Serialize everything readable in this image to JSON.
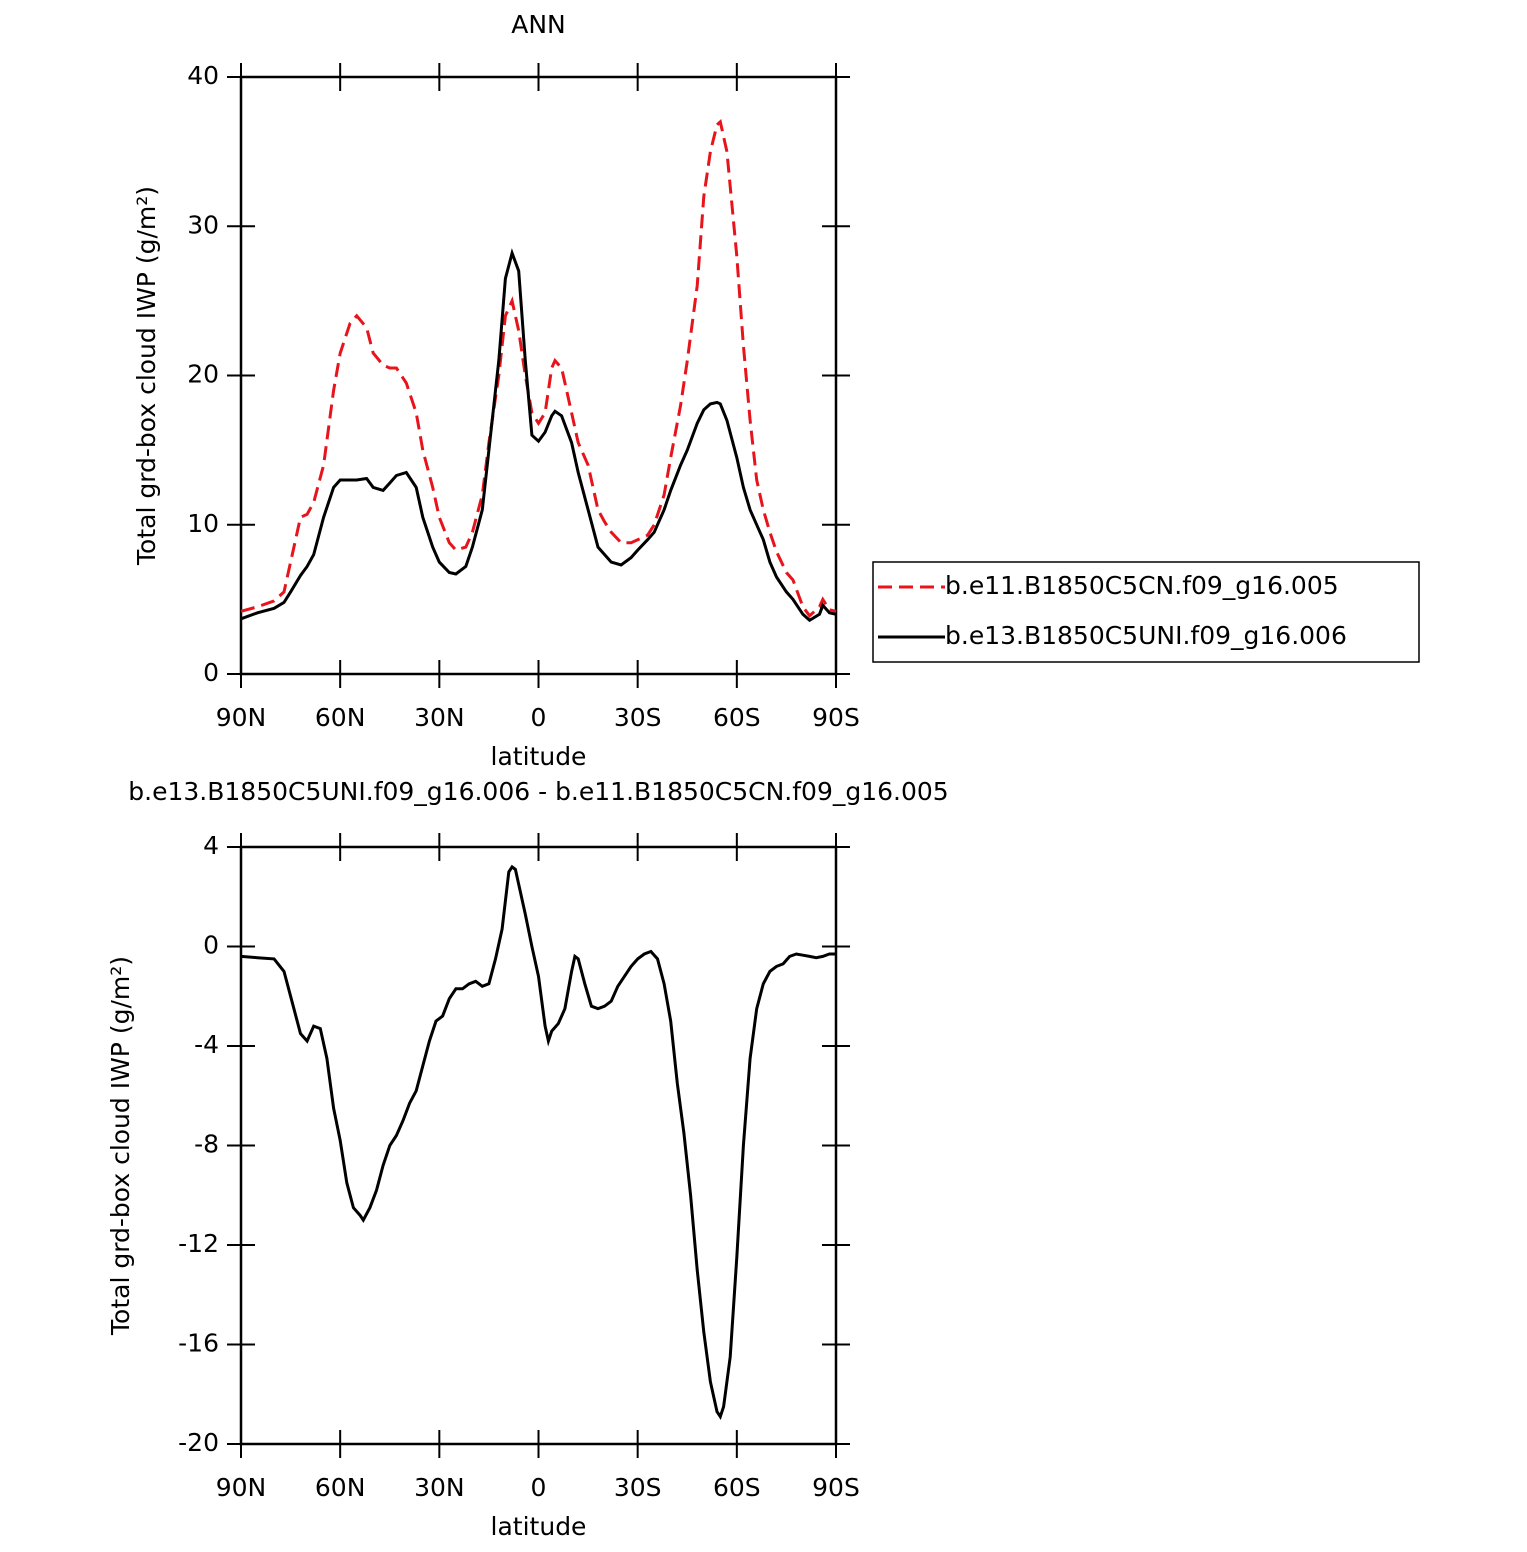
{
  "chart_data": [
    {
      "type": "line",
      "title": "ANN",
      "xlabel": "latitude",
      "ylabel": "Total grd-box cloud IWP (g/m²)",
      "xlim": [
        90,
        -90
      ],
      "xticks": [
        {
          "value": 90,
          "label": "90N"
        },
        {
          "value": 60,
          "label": "60N"
        },
        {
          "value": 30,
          "label": "30N"
        },
        0,
        {
          "value": -30,
          "label": "30S"
        },
        {
          "value": -60,
          "label": "60S"
        },
        {
          "value": -90,
          "label": "90S"
        }
      ],
      "ylim": [
        0,
        40
      ],
      "yticks": [
        0,
        10,
        20,
        30,
        40
      ],
      "legend": "outside-right",
      "x": [
        90,
        85,
        80,
        77,
        75,
        72,
        70,
        68,
        65,
        62,
        60,
        57,
        55,
        52,
        50,
        47,
        45,
        43,
        40,
        37,
        35,
        32,
        30,
        27,
        25,
        22,
        20,
        17,
        15,
        12,
        10,
        8,
        6,
        4,
        2,
        0,
        -2,
        -4,
        -5,
        -7,
        -10,
        -12,
        -15,
        -18,
        -20,
        -22,
        -25,
        -28,
        -30,
        -33,
        -35,
        -38,
        -40,
        -43,
        -45,
        -48,
        -50,
        -52,
        -54,
        -55,
        -57,
        -60,
        -62,
        -64,
        -66,
        -68,
        -70,
        -72,
        -75,
        -77,
        -80,
        -82,
        -85,
        -86,
        -88,
        -90
      ],
      "series": [
        {
          "name": "b.e11.B1850C5CN.f09_g16.005",
          "color": "#e8141c",
          "dash": true,
          "values": [
            4.2,
            4.5,
            4.9,
            5.5,
            7.5,
            10.5,
            10.7,
            11.5,
            14,
            19,
            21.5,
            23.5,
            24.0,
            23.2,
            21.5,
            20.7,
            20.5,
            20.5,
            19.5,
            17.5,
            15,
            12.5,
            10.5,
            8.8,
            8.3,
            8.5,
            9.5,
            12,
            15.5,
            20,
            24,
            25,
            23,
            20,
            17.5,
            16.8,
            17.5,
            20.5,
            21,
            20.5,
            17.5,
            15.5,
            14,
            11,
            10.2,
            9.5,
            8.8,
            8.8,
            9,
            9.3,
            10,
            12,
            14.5,
            18,
            21,
            26,
            32,
            35,
            36.8,
            37,
            35,
            28,
            22,
            17,
            13,
            11,
            9.5,
            8.2,
            6.8,
            6.3,
            4.5,
            3.9,
            4.5,
            5,
            4.3,
            4.2
          ]
        },
        {
          "name": "b.e13.B1850C5UNI.f09_g16.006",
          "color": "#000000",
          "dash": false,
          "values": [
            3.7,
            4.1,
            4.4,
            4.8,
            5.5,
            6.6,
            7.2,
            8,
            10.5,
            12.5,
            13,
            13,
            13,
            13.1,
            12.5,
            12.3,
            12.8,
            13.3,
            13.5,
            12.5,
            10.5,
            8.5,
            7.5,
            6.8,
            6.7,
            7.2,
            8.5,
            11,
            15,
            21,
            26.5,
            28.2,
            27,
            21,
            16,
            15.6,
            16.2,
            17.3,
            17.6,
            17.3,
            15.5,
            13.5,
            11,
            8.5,
            8,
            7.5,
            7.3,
            7.8,
            8.3,
            9,
            9.5,
            11,
            12.3,
            14,
            15,
            16.8,
            17.7,
            18.1,
            18.2,
            18.1,
            17,
            14.5,
            12.5,
            11,
            10,
            9,
            7.5,
            6.5,
            5.5,
            5,
            4,
            3.6,
            4,
            4.6,
            4.1,
            4
          ]
        }
      ]
    },
    {
      "type": "line",
      "title": "b.e13.B1850C5UNI.f09_g16.006 - b.e11.B1850C5CN.f09_g16.005",
      "xlabel": "latitude",
      "ylabel": "Total grd-box cloud IWP (g/m²)",
      "xlim": [
        90,
        -90
      ],
      "xticks": [
        {
          "value": 90,
          "label": "90N"
        },
        {
          "value": 60,
          "label": "60N"
        },
        {
          "value": 30,
          "label": "30N"
        },
        0,
        {
          "value": -30,
          "label": "30S"
        },
        {
          "value": -60,
          "label": "60S"
        },
        {
          "value": -90,
          "label": "90S"
        }
      ],
      "ylim": [
        -20,
        4
      ],
      "yticks": [
        -20,
        -16,
        -12,
        -8,
        -4,
        0,
        4
      ],
      "color": "#000000",
      "x": [
        90,
        85,
        80,
        77,
        75,
        72,
        70,
        68,
        66,
        64,
        62,
        60,
        58,
        56,
        54,
        53,
        51,
        49,
        47,
        45,
        43,
        41,
        39,
        37,
        35,
        33,
        31,
        29,
        27,
        25,
        23,
        21,
        19,
        17,
        15,
        13,
        11,
        9,
        8,
        7,
        6,
        4,
        2,
        0,
        -2,
        -3,
        -4,
        -6,
        -8,
        -10,
        -11,
        -12,
        -14,
        -16,
        -18,
        -20,
        -22,
        -24,
        -26,
        -28,
        -30,
        -32,
        -34,
        -36,
        -38,
        -40,
        -42,
        -44,
        -46,
        -48,
        -50,
        -52,
        -54,
        -55,
        -56,
        -58,
        -60,
        -62,
        -64,
        -66,
        -68,
        -70,
        -72,
        -74,
        -76,
        -78,
        -80,
        -82,
        -84,
        -86,
        -88,
        -90
      ],
      "values": [
        -0.4,
        -0.45,
        -0.5,
        -1.0,
        -2,
        -3.5,
        -3.8,
        -3.2,
        -3.3,
        -4.5,
        -6.5,
        -7.8,
        -9.5,
        -10.5,
        -10.8,
        -11,
        -10.5,
        -9.8,
        -8.8,
        -8,
        -7.6,
        -7,
        -6.3,
        -5.8,
        -4.8,
        -3.8,
        -3,
        -2.8,
        -2.1,
        -1.7,
        -1.7,
        -1.5,
        -1.4,
        -1.6,
        -1.5,
        -0.5,
        0.7,
        3.0,
        3.2,
        3.1,
        2.5,
        1.3,
        0,
        -1.2,
        -3.2,
        -3.8,
        -3.4,
        -3.1,
        -2.5,
        -1.0,
        -0.4,
        -0.5,
        -1.5,
        -2.4,
        -2.5,
        -2.4,
        -2.2,
        -1.6,
        -1.2,
        -0.8,
        -0.5,
        -0.3,
        -0.2,
        -0.5,
        -1.5,
        -3,
        -5.5,
        -7.5,
        -10,
        -13,
        -15.5,
        -17.5,
        -18.7,
        -18.9,
        -18.5,
        -16.5,
        -12.5,
        -8,
        -4.5,
        -2.5,
        -1.5,
        -1.0,
        -0.8,
        -0.7,
        -0.4,
        -0.3,
        -0.35,
        -0.4,
        -0.45,
        -0.4,
        -0.3,
        -0.3
      ]
    }
  ]
}
